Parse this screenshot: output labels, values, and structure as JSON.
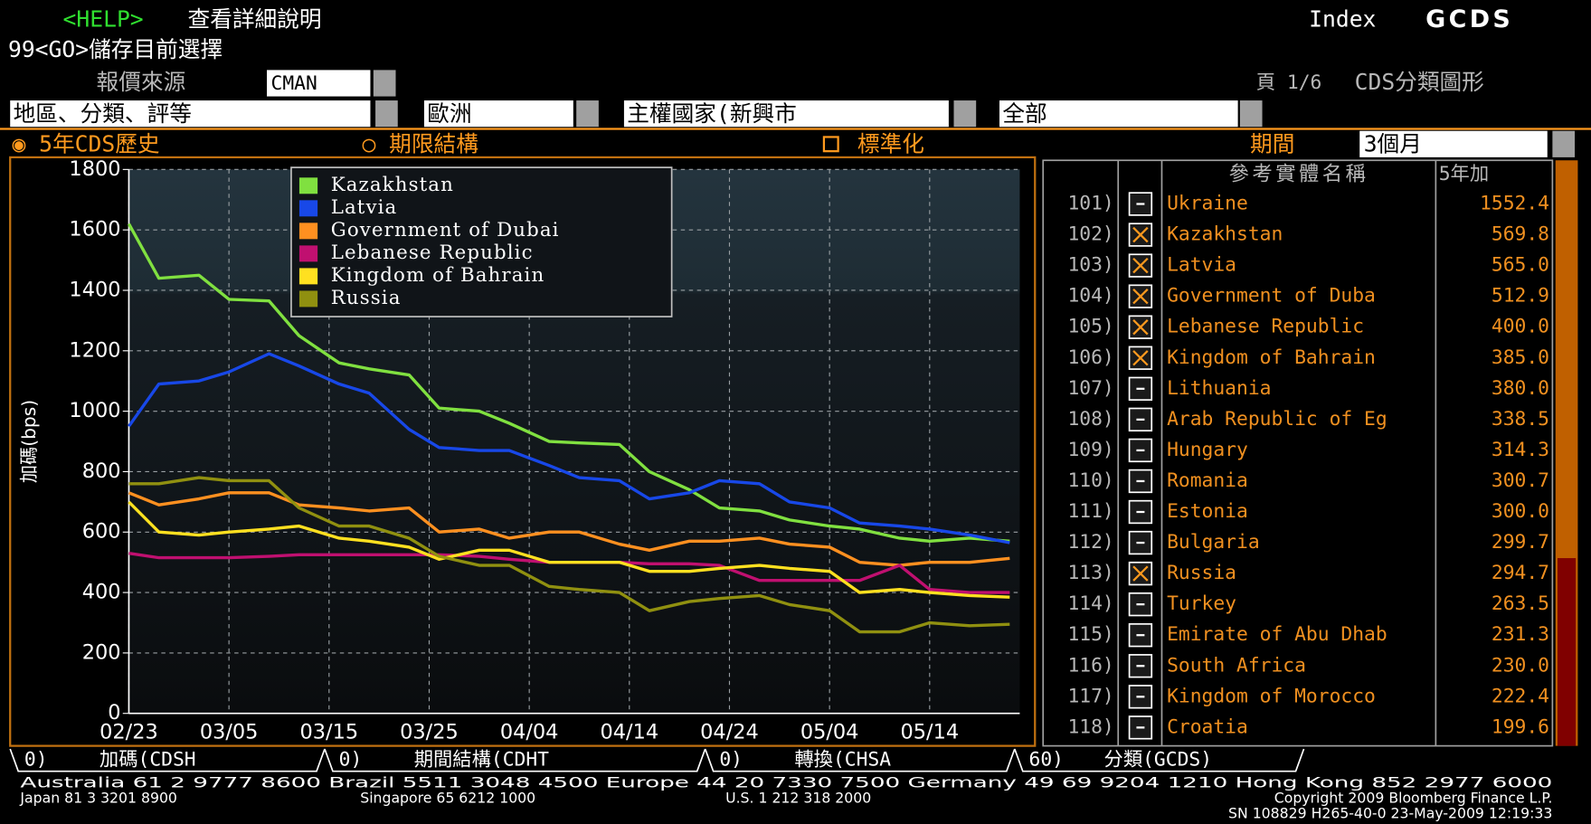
{
  "header": {
    "help": "<HELP>",
    "help_text": "查看詳細說明",
    "index_label": "Index",
    "index_code": "GCDS",
    "save": "99<GO>儲存目前選擇",
    "source_label": "報價來源",
    "source": "CMAN",
    "page": "頁 1/6",
    "screen_title": "CDS分類圖形"
  },
  "filters": [
    "地區、分類、評等",
    "歐洲",
    "主權國家(新興市",
    "全部"
  ],
  "modes": [
    "◉ 5年CDS歷史",
    "○ 期限結構",
    "標準化"
  ],
  "period": {
    "label": "期間",
    "value": "3個月"
  },
  "chart_data": {
    "type": "line",
    "y_label": "加碼(bps)",
    "x": [
      "02/23",
      "02/26",
      "03/02",
      "03/05",
      "03/09",
      "03/12",
      "03/16",
      "03/19",
      "03/23",
      "03/26",
      "03/30",
      "04/02",
      "04/06",
      "04/09",
      "04/13",
      "04/16",
      "04/20",
      "04/23",
      "04/27",
      "04/30",
      "05/04",
      "05/07",
      "05/11",
      "05/14",
      "05/18",
      "05/22"
    ],
    "xlim": [
      "02/23",
      "05/23"
    ],
    "xticks": [
      "02/23",
      "03/05",
      "03/15",
      "03/25",
      "04/04",
      "04/14",
      "04/24",
      "05/04",
      "05/14"
    ],
    "ylim": [
      0,
      1800
    ],
    "yticks": [
      0,
      200,
      400,
      600,
      800,
      1000,
      1200,
      1400,
      1600,
      1800
    ],
    "grid": true,
    "legend": "upper-left",
    "series": [
      {
        "name": "Kazakhstan",
        "color": "#80e040",
        "values": [
          1620,
          1440,
          1450,
          1370,
          1365,
          1250,
          1160,
          1140,
          1120,
          1010,
          1000,
          960,
          900,
          895,
          890,
          800,
          740,
          680,
          670,
          640,
          620,
          610,
          580,
          570,
          580,
          570
        ]
      },
      {
        "name": "Latvia",
        "color": "#1848e8",
        "values": [
          950,
          1090,
          1100,
          1130,
          1190,
          1150,
          1090,
          1060,
          940,
          880,
          870,
          870,
          820,
          780,
          770,
          710,
          730,
          770,
          760,
          700,
          680,
          630,
          620,
          610,
          590,
          565
        ]
      },
      {
        "name": "Government of Dubai",
        "color": "#ff9020",
        "values": [
          730,
          690,
          710,
          730,
          730,
          690,
          680,
          670,
          680,
          600,
          610,
          580,
          600,
          600,
          560,
          540,
          570,
          570,
          580,
          560,
          550,
          500,
          490,
          500,
          500,
          513
        ]
      },
      {
        "name": "Lebanese Republic",
        "color": "#c01070",
        "values": [
          530,
          515,
          515,
          515,
          520,
          525,
          525,
          525,
          525,
          525,
          520,
          510,
          500,
          500,
          500,
          495,
          495,
          490,
          440,
          440,
          440,
          440,
          490,
          410,
          400,
          400
        ]
      },
      {
        "name": "Kingdom of Bahrain",
        "color": "#ffe020",
        "values": [
          700,
          600,
          590,
          600,
          610,
          620,
          580,
          570,
          550,
          510,
          540,
          540,
          500,
          500,
          500,
          470,
          470,
          480,
          490,
          480,
          470,
          400,
          410,
          400,
          390,
          385
        ]
      },
      {
        "name": "Russia",
        "color": "#909010",
        "values": [
          760,
          760,
          780,
          770,
          770,
          680,
          620,
          620,
          580,
          520,
          490,
          490,
          420,
          410,
          400,
          340,
          370,
          380,
          390,
          360,
          340,
          270,
          270,
          300,
          290,
          295
        ]
      }
    ]
  },
  "table": {
    "headers": [
      "參考實體名稱",
      "5年加"
    ],
    "rows": [
      {
        "number": "101)",
        "checked": false,
        "name": "Ukraine",
        "value": "1552.4"
      },
      {
        "number": "102)",
        "checked": true,
        "name": "Kazakhstan",
        "value": "569.8"
      },
      {
        "number": "103)",
        "checked": true,
        "name": "Latvia",
        "value": "565.0"
      },
      {
        "number": "104)",
        "checked": true,
        "name": "Government of Duba",
        "value": "512.9"
      },
      {
        "number": "105)",
        "checked": true,
        "name": "Lebanese Republic",
        "value": "400.0"
      },
      {
        "number": "106)",
        "checked": true,
        "name": "Kingdom of Bahrain",
        "value": "385.0"
      },
      {
        "number": "107)",
        "checked": false,
        "name": "Lithuania",
        "value": "380.0"
      },
      {
        "number": "108)",
        "checked": false,
        "name": "Arab Republic of Eg",
        "value": "338.5"
      },
      {
        "number": "109)",
        "checked": false,
        "name": "Hungary",
        "value": "314.3"
      },
      {
        "number": "110)",
        "checked": false,
        "name": "Romania",
        "value": "300.7"
      },
      {
        "number": "111)",
        "checked": false,
        "name": "Estonia",
        "value": "300.0"
      },
      {
        "number": "112)",
        "checked": false,
        "name": "Bulgaria",
        "value": "299.7"
      },
      {
        "number": "113)",
        "checked": true,
        "name": "Russia",
        "value": "294.7"
      },
      {
        "number": "114)",
        "checked": false,
        "name": "Turkey",
        "value": "263.5"
      },
      {
        "number": "115)",
        "checked": false,
        "name": "Emirate of Abu Dhab",
        "value": "231.3"
      },
      {
        "number": "116)",
        "checked": false,
        "name": "South Africa",
        "value": "230.0"
      },
      {
        "number": "117)",
        "checked": false,
        "name": "Kingdom of Morocco",
        "value": "222.4"
      },
      {
        "number": "118)",
        "checked": false,
        "name": "Croatia",
        "value": "199.6"
      }
    ]
  },
  "tabs": [
    {
      "key": "0)",
      "label": "加碼(CDSH"
    },
    {
      "key": "0)",
      "label": "期間結構(CDHT"
    },
    {
      "key": "0)",
      "label": "轉換(CHSA"
    },
    {
      "key": "60)",
      "label": "分類(GCDS)"
    }
  ],
  "footer": [
    "Australia 61 2 9777 8600 Brazil 5511 3048 4500 Europe 44 20 7330 7500 Germany 49 69 9204 1210 Hong Kong 852 2977 6000",
    "Japan 81 3 3201 8900",
    "Singapore 65 6212 1000",
    "U.S. 1 212 318 2000",
    "Copyright 2009 Bloomberg Finance L.P.",
    "SN 108829 H265-40-0 23-May-2009 12:19:33"
  ]
}
